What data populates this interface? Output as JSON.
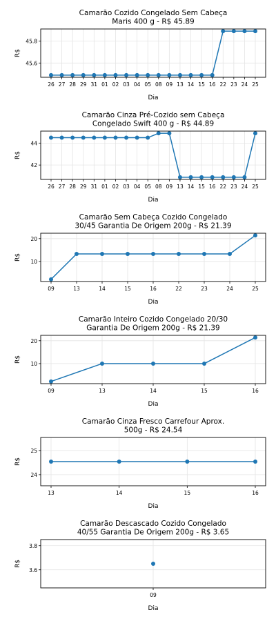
{
  "chart_data": [
    {
      "type": "line",
      "title": "Camarão Cozido Congelado Sem Cabeça\nMaris 400 g - R$ 45.89",
      "xlabel": "Dia",
      "ylabel": "R$",
      "categories": [
        "26",
        "27",
        "28",
        "29",
        "31",
        "01",
        "02",
        "03",
        "04",
        "05",
        "08",
        "09",
        "13",
        "14",
        "15",
        "16",
        "22",
        "23",
        "24",
        "25"
      ],
      "values": [
        45.49,
        45.49,
        45.49,
        45.49,
        45.49,
        45.49,
        45.49,
        45.49,
        45.49,
        45.49,
        45.49,
        45.49,
        45.49,
        45.49,
        45.49,
        45.49,
        45.89,
        45.89,
        45.89,
        45.89
      ],
      "yticks": [
        45.6,
        45.8
      ],
      "ylim": [
        45.47,
        45.91
      ],
      "grid": true,
      "color": "#1f77b4"
    },
    {
      "type": "line",
      "title": "Camarão Cinza Pré-Cozido sem Cabeça\nCongelado Swift 400 g - R$ 44.89",
      "xlabel": "Dia",
      "ylabel": "R$",
      "categories": [
        "26",
        "27",
        "28",
        "29",
        "31",
        "01",
        "02",
        "03",
        "04",
        "05",
        "08",
        "09",
        "13",
        "14",
        "15",
        "16",
        "22",
        "23",
        "24",
        "25"
      ],
      "values": [
        44.49,
        44.49,
        44.49,
        44.49,
        44.49,
        44.49,
        44.49,
        44.49,
        44.49,
        44.49,
        44.89,
        44.89,
        40.89,
        40.89,
        40.89,
        40.89,
        40.89,
        40.89,
        40.89,
        44.89
      ],
      "yticks": [
        42,
        44
      ],
      "ylim": [
        40.69,
        45.09
      ],
      "grid": true,
      "color": "#1f77b4"
    },
    {
      "type": "line",
      "title": "Camarão Sem Cabeça Cozido Congelado\n30/45 Garantia De Origem 200g - R$ 21.39",
      "xlabel": "Dia",
      "ylabel": "R$",
      "categories": [
        "09",
        "13",
        "14",
        "15",
        "16",
        "22",
        "23",
        "24",
        "25"
      ],
      "values": [
        2.2,
        13.3,
        13.3,
        13.3,
        13.3,
        13.3,
        13.3,
        13.3,
        21.39
      ],
      "yticks": [
        10,
        20
      ],
      "ylim": [
        1.24,
        22.35
      ],
      "grid": true,
      "color": "#1f77b4"
    },
    {
      "type": "line",
      "title": "Camarão Inteiro Cozido Congelado 20/30\nGarantia De Origem 200g - R$ 21.39",
      "xlabel": "Dia",
      "ylabel": "R$",
      "categories": [
        "09",
        "13",
        "14",
        "15",
        "16"
      ],
      "values": [
        2.2,
        10.0,
        10.0,
        10.0,
        21.39
      ],
      "yticks": [
        10,
        20
      ],
      "ylim": [
        1.24,
        22.35
      ],
      "grid": true,
      "color": "#1f77b4"
    },
    {
      "type": "line",
      "title": "Camarão Cinza Fresco Carrefour Aprox.\n500g - R$ 24.54",
      "xlabel": "Dia",
      "ylabel": "R$",
      "categories": [
        "13",
        "14",
        "15",
        "16"
      ],
      "values": [
        24.54,
        24.54,
        24.54,
        24.54
      ],
      "yticks": [
        24,
        25
      ],
      "ylim": [
        23.54,
        25.54
      ],
      "grid": true,
      "color": "#1f77b4"
    },
    {
      "type": "scatter",
      "title": "Camarão Descascado Cozido Congelado\n40/55 Garantia De Origem 200g - R$ 3.65",
      "xlabel": "Dia",
      "ylabel": "R$",
      "categories": [
        "09"
      ],
      "values": [
        3.65
      ],
      "yticks": [
        3.6,
        3.8
      ],
      "ylim": [
        3.45,
        3.85
      ],
      "grid": true,
      "color": "#1f77b4"
    }
  ]
}
